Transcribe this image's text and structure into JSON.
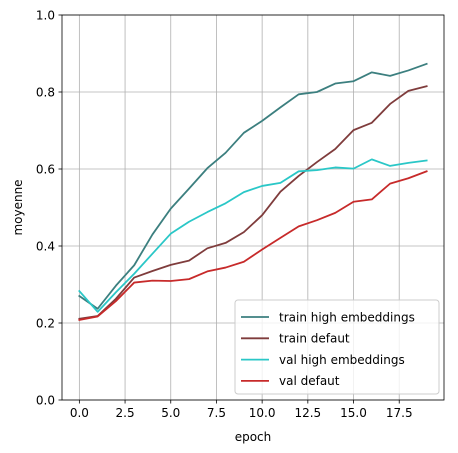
{
  "chart_data": {
    "type": "line",
    "title": "",
    "xlabel": "epoch",
    "ylabel": "moyenne",
    "xlim": [
      -0.95,
      19.95
    ],
    "ylim": [
      0.0,
      1.0
    ],
    "xticks": [
      0.0,
      2.5,
      5.0,
      7.5,
      10.0,
      12.5,
      15.0,
      17.5
    ],
    "xtick_labels": [
      "0.0",
      "2.5",
      "5.0",
      "7.5",
      "10.0",
      "12.5",
      "15.0",
      "17.5"
    ],
    "yticks": [
      0.0,
      0.2,
      0.4,
      0.6,
      0.8,
      1.0
    ],
    "ytick_labels": [
      "0.0",
      "0.2",
      "0.4",
      "0.6",
      "0.8",
      "1.0"
    ],
    "grid": true,
    "legend_position": "lower-right",
    "x": [
      0,
      1,
      2,
      3,
      4,
      5,
      6,
      7,
      8,
      9,
      10,
      11,
      12,
      13,
      14,
      15,
      16,
      17,
      18,
      19
    ],
    "series": [
      {
        "name": "train high embeddings",
        "color": "#3c7f7f",
        "values": [
          0.27,
          0.237,
          0.297,
          0.35,
          0.43,
          0.497,
          0.549,
          0.602,
          0.642,
          0.694,
          0.725,
          0.76,
          0.794,
          0.8,
          0.822,
          0.828,
          0.851,
          0.842,
          0.856,
          0.873
        ]
      },
      {
        "name": "train defaut",
        "color": "#7f3c3c",
        "values": [
          0.211,
          0.218,
          0.263,
          0.318,
          0.335,
          0.351,
          0.362,
          0.394,
          0.408,
          0.436,
          0.48,
          0.541,
          0.582,
          0.618,
          0.652,
          0.701,
          0.72,
          0.769,
          0.803,
          0.815
        ]
      },
      {
        "name": "val high embeddings",
        "color": "#2ac7c7",
        "values": [
          0.283,
          0.229,
          0.28,
          0.328,
          0.38,
          0.432,
          0.463,
          0.488,
          0.511,
          0.54,
          0.556,
          0.564,
          0.594,
          0.597,
          0.604,
          0.601,
          0.625,
          0.608,
          0.616,
          0.622
        ]
      },
      {
        "name": "val defaut",
        "color": "#c72a2a",
        "values": [
          0.208,
          0.217,
          0.257,
          0.305,
          0.31,
          0.309,
          0.314,
          0.334,
          0.344,
          0.359,
          0.391,
          0.421,
          0.451,
          0.467,
          0.486,
          0.515,
          0.521,
          0.562,
          0.576,
          0.594
        ]
      }
    ]
  }
}
